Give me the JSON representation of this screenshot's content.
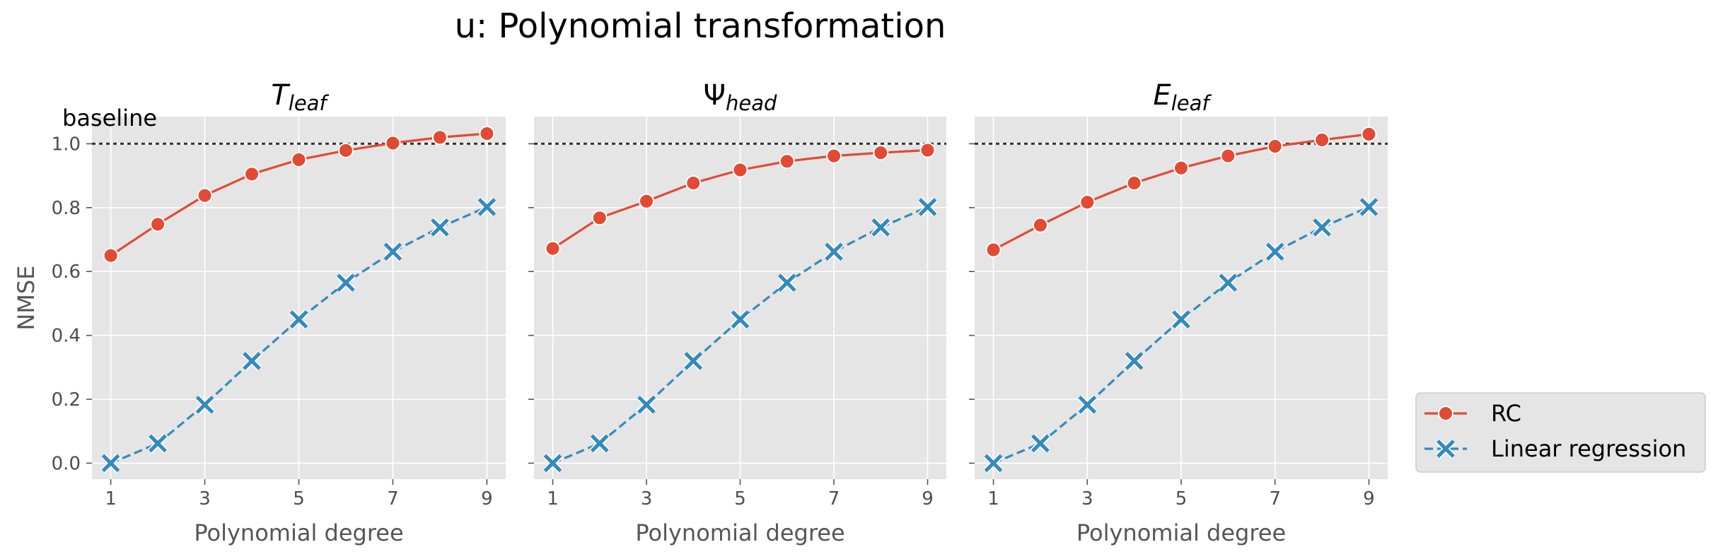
{
  "figure": {
    "suptitle": "u: Polynomial transformation",
    "baseline_label": "baseline",
    "background": "#ffffff",
    "panel_background": "#e5e5e5",
    "grid_color": "#ffffff"
  },
  "chart_data": [
    {
      "type": "line",
      "title": {
        "main": "T",
        "sub": "leaf",
        "main_italic": true,
        "sub_italic": true
      },
      "xlabel": "Polynomial degree",
      "ylabel": "NMSE",
      "x": [
        1,
        2,
        3,
        4,
        5,
        6,
        7,
        8,
        9
      ],
      "xticks": [
        1,
        3,
        5,
        7,
        9
      ],
      "xtick_labels": [
        "1",
        "3",
        "5",
        "7",
        "9"
      ],
      "yticks": [
        0.0,
        0.2,
        0.4,
        0.6,
        0.8,
        1.0
      ],
      "ytick_labels": [
        "0.0",
        "0.2",
        "0.4",
        "0.6",
        "0.8",
        "1.0"
      ],
      "xlim": [
        0.6,
        9.4
      ],
      "ylim": [
        -0.05,
        1.085
      ],
      "grid": true,
      "baseline": 1.0,
      "series": [
        {
          "name": "RC",
          "color": "#e24a33",
          "marker": "circle",
          "linestyle": "solid",
          "values": [
            0.65,
            0.748,
            0.838,
            0.905,
            0.95,
            0.979,
            1.002,
            1.02,
            1.032
          ]
        },
        {
          "name": "Linear regression",
          "color": "#348abd",
          "marker": "x",
          "linestyle": "dashed",
          "values": [
            0.0,
            0.062,
            0.183,
            0.32,
            0.45,
            0.565,
            0.662,
            0.738,
            0.802
          ]
        }
      ]
    },
    {
      "type": "line",
      "title": {
        "main": "Ψ",
        "sub": "head",
        "main_italic": false,
        "sub_italic": true
      },
      "xlabel": "Polynomial degree",
      "ylabel": "",
      "x": [
        1,
        2,
        3,
        4,
        5,
        6,
        7,
        8,
        9
      ],
      "xticks": [
        1,
        3,
        5,
        7,
        9
      ],
      "xtick_labels": [
        "1",
        "3",
        "5",
        "7",
        "9"
      ],
      "yticks": [
        0.0,
        0.2,
        0.4,
        0.6,
        0.8,
        1.0
      ],
      "ytick_labels": [],
      "xlim": [
        0.6,
        9.4
      ],
      "ylim": [
        -0.05,
        1.085
      ],
      "grid": true,
      "baseline": 1.0,
      "series": [
        {
          "name": "RC",
          "color": "#e24a33",
          "marker": "circle",
          "linestyle": "solid",
          "values": [
            0.672,
            0.768,
            0.82,
            0.877,
            0.918,
            0.945,
            0.962,
            0.972,
            0.98
          ]
        },
        {
          "name": "Linear regression",
          "color": "#348abd",
          "marker": "x",
          "linestyle": "dashed",
          "values": [
            0.0,
            0.062,
            0.183,
            0.32,
            0.45,
            0.565,
            0.662,
            0.738,
            0.802
          ]
        }
      ]
    },
    {
      "type": "line",
      "title": {
        "main": "E",
        "sub": "leaf",
        "main_italic": true,
        "sub_italic": true
      },
      "xlabel": "Polynomial degree",
      "ylabel": "",
      "x": [
        1,
        2,
        3,
        4,
        5,
        6,
        7,
        8,
        9
      ],
      "xticks": [
        1,
        3,
        5,
        7,
        9
      ],
      "xtick_labels": [
        "1",
        "3",
        "5",
        "7",
        "9"
      ],
      "yticks": [
        0.0,
        0.2,
        0.4,
        0.6,
        0.8,
        1.0
      ],
      "ytick_labels": [],
      "xlim": [
        0.6,
        9.4
      ],
      "ylim": [
        -0.05,
        1.085
      ],
      "grid": true,
      "baseline": 1.0,
      "series": [
        {
          "name": "RC",
          "color": "#e24a33",
          "marker": "circle",
          "linestyle": "solid",
          "values": [
            0.668,
            0.745,
            0.817,
            0.877,
            0.924,
            0.962,
            0.992,
            1.012,
            1.03
          ]
        },
        {
          "name": "Linear regression",
          "color": "#348abd",
          "marker": "x",
          "linestyle": "dashed",
          "values": [
            0.0,
            0.062,
            0.183,
            0.32,
            0.45,
            0.565,
            0.662,
            0.738,
            0.802
          ]
        }
      ]
    }
  ],
  "legend": {
    "placement": "right-bottom",
    "background": "#e5e5e5",
    "entries": [
      {
        "label": "RC",
        "color": "#e24a33",
        "marker": "circle",
        "linestyle": "solid"
      },
      {
        "label": "Linear regression",
        "color": "#348abd",
        "marker": "x",
        "linestyle": "dashed"
      }
    ]
  }
}
